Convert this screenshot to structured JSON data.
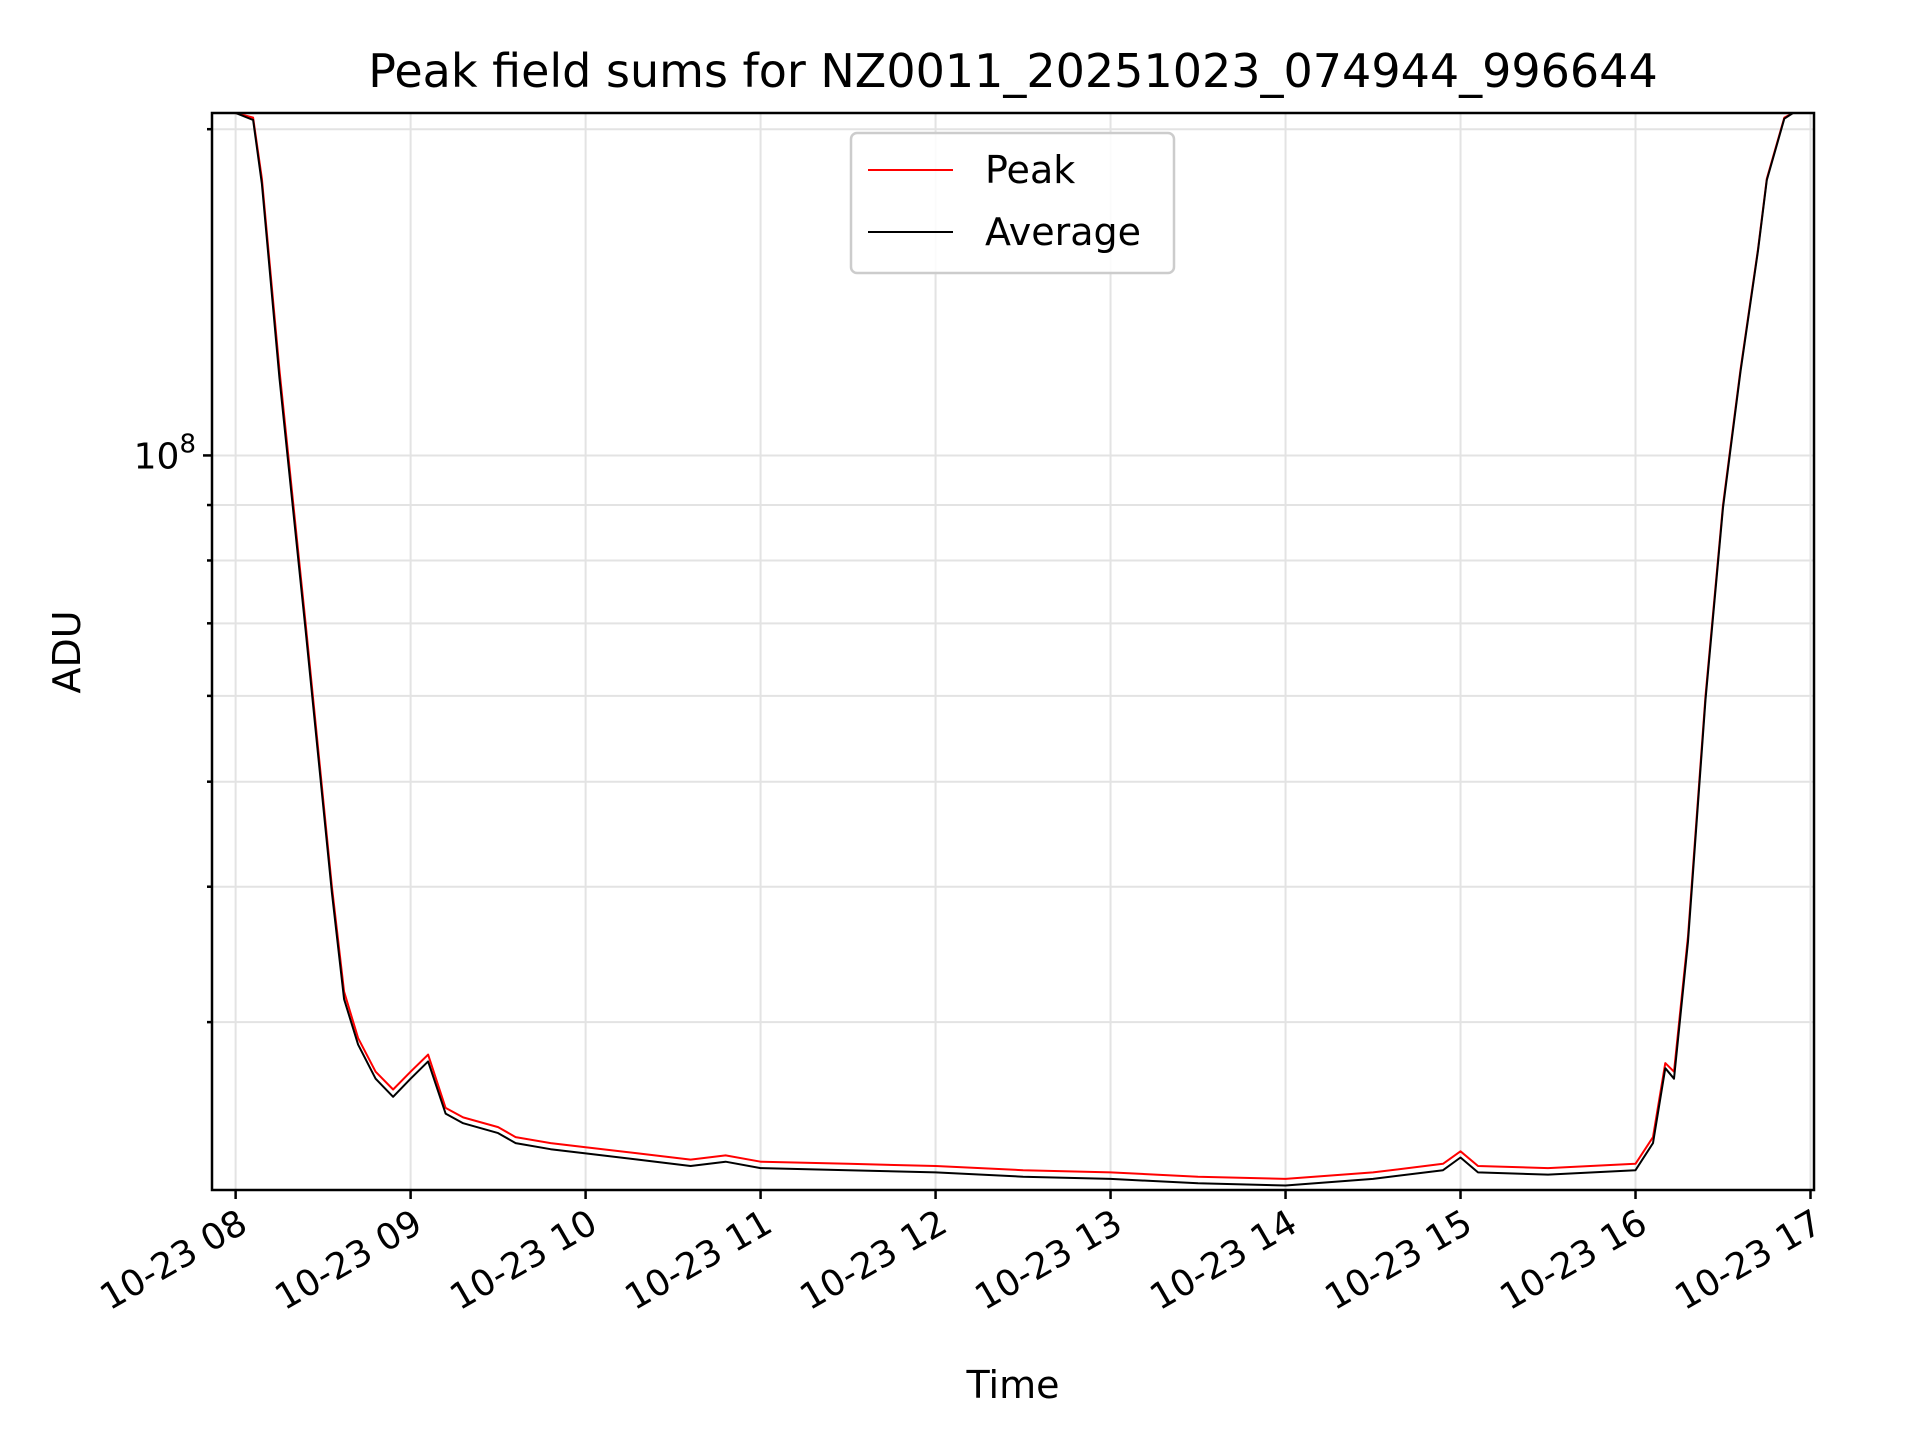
{
  "chart_data": {
    "type": "line",
    "title": "Peak field sums for NZ0011_20251023_074944_996644",
    "xlabel": "Time",
    "ylabel": "ADU",
    "yscale": "log",
    "ylim": [
      21000000,
      207000000
    ],
    "xlim_hours": [
      7.865,
      17.02
    ],
    "grid": true,
    "legend_position": "top-center",
    "x_ticks": [
      {
        "hour": 8,
        "label": "10-23 08"
      },
      {
        "hour": 9,
        "label": "10-23 09"
      },
      {
        "hour": 10,
        "label": "10-23 10"
      },
      {
        "hour": 11,
        "label": "10-23 11"
      },
      {
        "hour": 12,
        "label": "10-23 12"
      },
      {
        "hour": 13,
        "label": "10-23 13"
      },
      {
        "hour": 14,
        "label": "10-23 14"
      },
      {
        "hour": 15,
        "label": "10-23 15"
      },
      {
        "hour": 16,
        "label": "10-23 16"
      },
      {
        "hour": 17,
        "label": "10-23 17"
      }
    ],
    "y_major_ticks": [
      {
        "value": 100000000,
        "base": "10",
        "exp": "8"
      }
    ],
    "y_minor_ticks": [
      30000000,
      40000000,
      50000000,
      60000000,
      70000000,
      80000000,
      90000000,
      200000000
    ],
    "series": [
      {
        "name": "Peak",
        "color": "#ff0000",
        "x_hours": [
          7.865,
          8.0,
          8.1,
          8.15,
          8.25,
          8.4,
          8.55,
          8.62,
          8.7,
          8.8,
          8.9,
          9.0,
          9.1,
          9.2,
          9.3,
          9.5,
          9.6,
          9.8,
          10.0,
          10.3,
          10.6,
          10.8,
          11.0,
          11.5,
          12.0,
          12.5,
          13.0,
          13.5,
          14.0,
          14.5,
          14.9,
          15.0,
          15.1,
          15.5,
          16.0,
          16.1,
          16.17,
          16.22,
          16.3,
          16.4,
          16.5,
          16.6,
          16.7,
          16.75,
          16.85,
          16.9,
          17.02
        ],
        "values": [
          207000000,
          207000000,
          205000000,
          180000000,
          120000000,
          70000000,
          40000000,
          32000000,
          29000000,
          27000000,
          26000000,
          27000000,
          28000000,
          25000000,
          24500000,
          24000000,
          23500000,
          23200000,
          23000000,
          22700000,
          22400000,
          22600000,
          22300000,
          22200000,
          22100000,
          21900000,
          21800000,
          21600000,
          21500000,
          21800000,
          22200000,
          22800000,
          22100000,
          22000000,
          22200000,
          23500000,
          27500000,
          27000000,
          36000000,
          60000000,
          90000000,
          120000000,
          155000000,
          180000000,
          205000000,
          207000000,
          207000000
        ]
      },
      {
        "name": "Average",
        "color": "#000000",
        "x_hours": [
          7.865,
          8.0,
          8.1,
          8.15,
          8.25,
          8.4,
          8.55,
          8.62,
          8.7,
          8.8,
          8.9,
          9.0,
          9.1,
          9.2,
          9.3,
          9.5,
          9.6,
          9.8,
          10.0,
          10.3,
          10.6,
          10.8,
          11.0,
          11.5,
          12.0,
          12.5,
          13.0,
          13.5,
          14.0,
          14.5,
          14.9,
          15.0,
          15.1,
          15.5,
          16.0,
          16.1,
          16.17,
          16.22,
          16.3,
          16.4,
          16.5,
          16.6,
          16.7,
          16.75,
          16.85,
          16.9,
          17.02
        ],
        "values": [
          207000000,
          207000000,
          204000000,
          178000000,
          118000000,
          69000000,
          39500000,
          31500000,
          28600000,
          26600000,
          25600000,
          26600000,
          27600000,
          24700000,
          24200000,
          23700000,
          23200000,
          22900000,
          22700000,
          22400000,
          22100000,
          22300000,
          22000000,
          21900000,
          21800000,
          21600000,
          21500000,
          21300000,
          21200000,
          21500000,
          21900000,
          22500000,
          21800000,
          21700000,
          21900000,
          23200000,
          27200000,
          26600000,
          35600000,
          59500000,
          89500000,
          119500000,
          154500000,
          179500000,
          204500000,
          207000000,
          207000000
        ]
      }
    ],
    "legend": [
      {
        "label": "Peak",
        "color": "#ff0000"
      },
      {
        "label": "Average",
        "color": "#000000"
      }
    ]
  }
}
